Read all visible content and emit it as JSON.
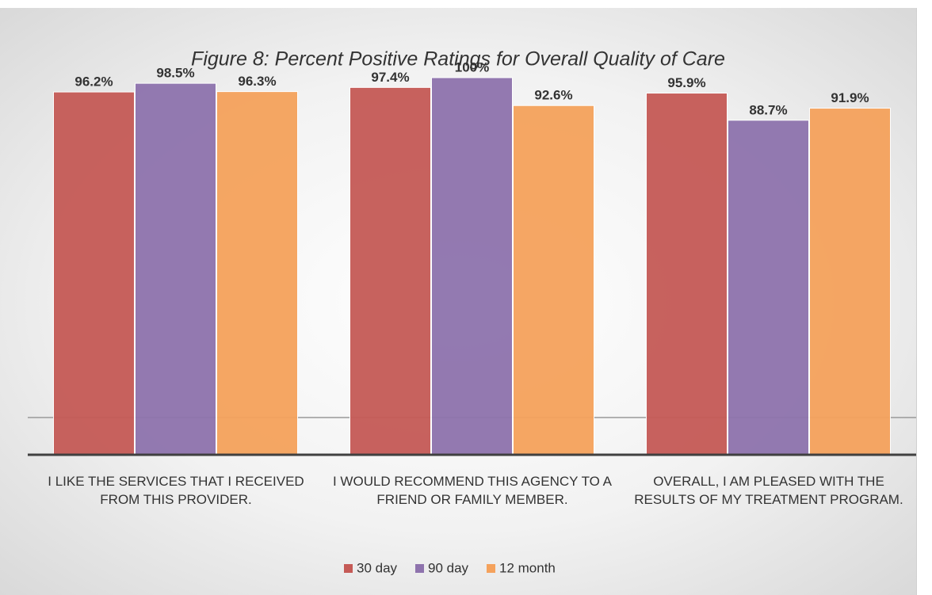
{
  "chart_data": {
    "type": "bar",
    "title": "Figure 8: Percent Positive Ratings for Overall Quality of Care",
    "categories": [
      "I LIKE THE SERVICES THAT I RECEIVED FROM THIS PROVIDER.",
      "I WOULD RECOMMEND THIS AGENCY TO A FRIEND OR FAMILY MEMBER.",
      "OVERALL, I AM PLEASED WITH THE RESULTS OF MY TREATMENT PROGRAM."
    ],
    "series": [
      {
        "name": "30 day",
        "color": "#c55a56",
        "values": [
          96.2,
          97.4,
          95.9
        ],
        "value_labels": [
          "96.2%",
          "97.4%",
          "95.9%"
        ]
      },
      {
        "name": "90 day",
        "color": "#8e73ad",
        "values": [
          98.5,
          100,
          88.7
        ],
        "value_labels": [
          "98.5%",
          "100%",
          "88.7%"
        ]
      },
      {
        "name": "12 month",
        "color": "#f5a25c",
        "values": [
          96.3,
          92.6,
          91.9
        ],
        "value_labels": [
          "96.3%",
          "92.6%",
          "91.9%"
        ]
      }
    ],
    "ylim": [
      0,
      100
    ],
    "legend": "bottom"
  }
}
